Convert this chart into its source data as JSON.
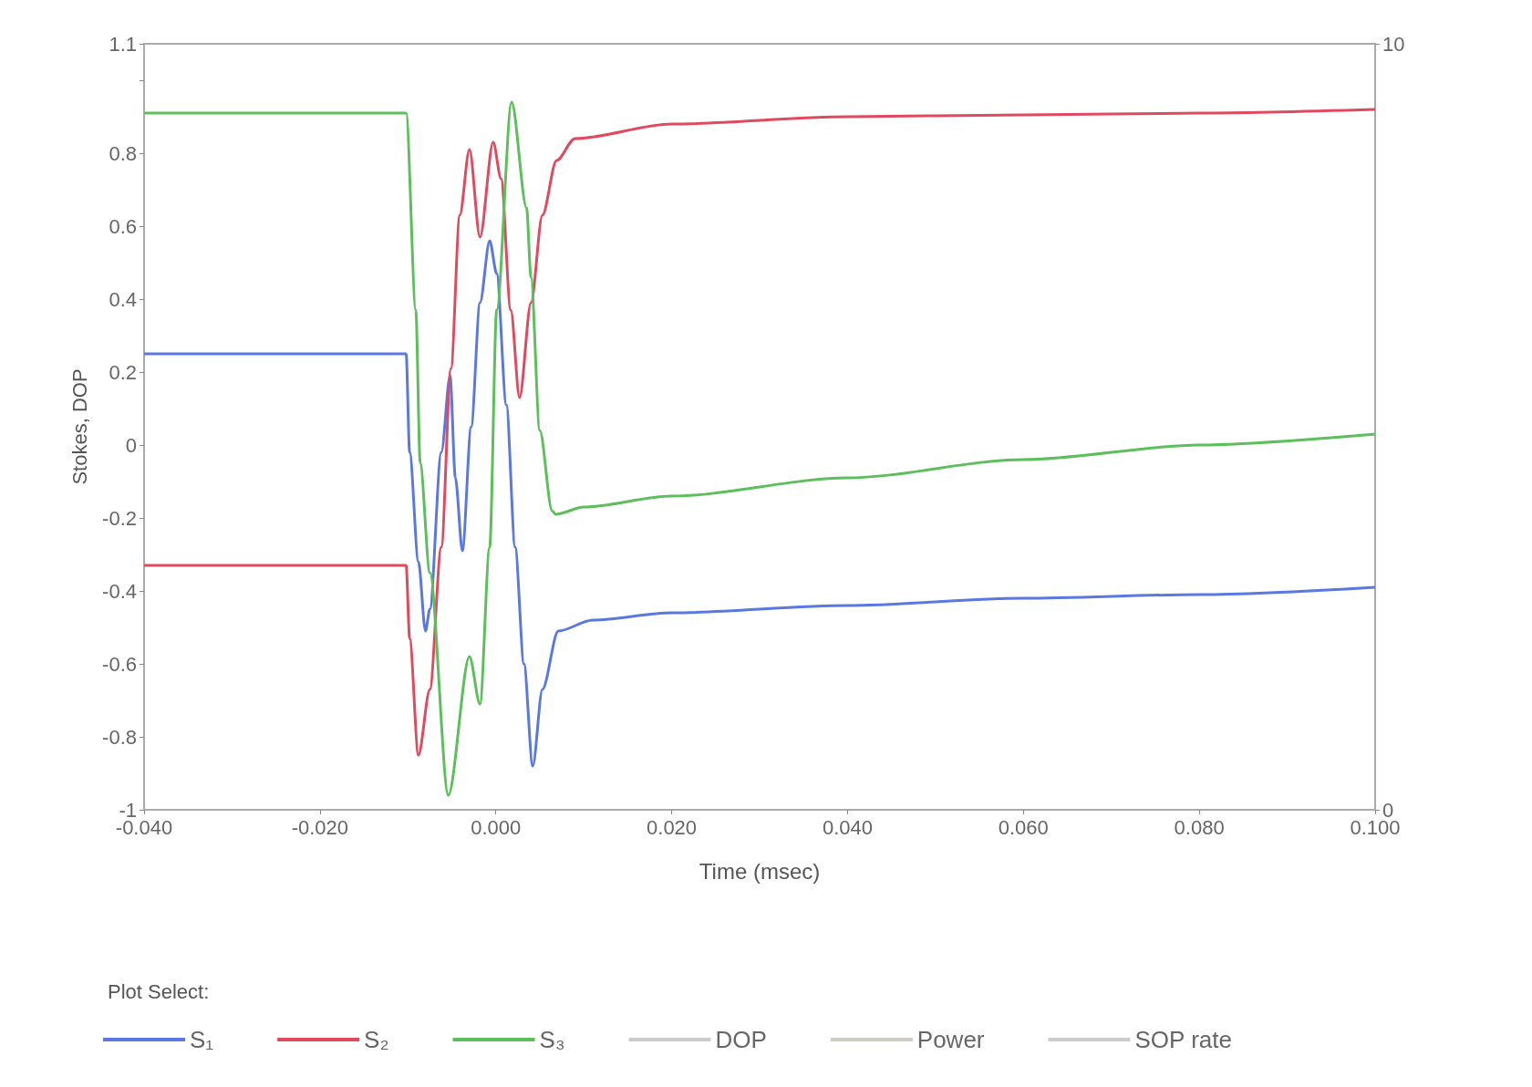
{
  "chart_data": {
    "type": "line",
    "xlabel": "Time (msec)",
    "ylabel": "Stokes, DOP",
    "legend_title": "Plot Select:",
    "legend": "bottom",
    "grid": false,
    "xlim": [
      -0.04,
      0.1
    ],
    "xticks": [
      {
        "value": -0.04,
        "label": "-0.040"
      },
      {
        "value": -0.02,
        "label": "-0.020"
      },
      {
        "value": 0,
        "label": "0.000"
      },
      {
        "value": 0.02,
        "label": "0.020"
      },
      {
        "value": 0.04,
        "label": "0.040"
      },
      {
        "value": 0.06,
        "label": "0.060"
      },
      {
        "value": 0.08,
        "label": "0.080"
      },
      {
        "value": 0.1,
        "label": "0.100"
      }
    ],
    "ylim": [
      -1,
      1.1
    ],
    "yticks": [
      -1,
      -0.8,
      -0.6,
      -0.4,
      -0.2,
      0,
      0.2,
      0.4,
      0.6,
      0.8,
      {
        "value": 1,
        "label": null
      },
      1.1
    ],
    "y2lim": [
      0,
      10
    ],
    "y2ticks": [
      0,
      10
    ],
    "series": [
      {
        "name": "S₁",
        "color": "#5a78e0",
        "x": [
          -0.04,
          -0.0102,
          -0.0098,
          -0.0088,
          -0.008,
          -0.0075,
          -0.0062,
          -0.0052,
          -0.0046,
          -0.0038,
          -0.0028,
          -0.0018,
          -0.0007,
          0.0001,
          0.0012,
          0.0022,
          0.0032,
          0.0042,
          0.0053,
          0.0071,
          0.011,
          0.02,
          0.04,
          0.06,
          0.08,
          0.1
        ],
        "values": [
          0.25,
          0.25,
          -0.02,
          -0.32,
          -0.51,
          -0.45,
          -0.02,
          0.19,
          -0.09,
          -0.29,
          0.05,
          0.39,
          0.56,
          0.47,
          0.11,
          -0.28,
          -0.6,
          -0.88,
          -0.67,
          -0.51,
          -0.48,
          -0.46,
          -0.44,
          -0.42,
          -0.41,
          -0.39
        ]
      },
      {
        "name": "S₂",
        "color": "#e04a60",
        "x": [
          -0.04,
          -0.0102,
          -0.0098,
          -0.0088,
          -0.0075,
          -0.0062,
          -0.0051,
          -0.0041,
          -0.003,
          -0.0018,
          -0.0003,
          0.0006,
          0.0017,
          0.0027,
          0.004,
          0.0053,
          0.0069,
          0.009,
          0.02,
          0.04,
          0.06,
          0.08,
          0.1
        ],
        "values": [
          -0.33,
          -0.33,
          -0.53,
          -0.85,
          -0.67,
          -0.28,
          0.21,
          0.63,
          0.81,
          0.57,
          0.83,
          0.73,
          0.37,
          0.13,
          0.39,
          0.63,
          0.78,
          0.84,
          0.88,
          0.9,
          0.905,
          0.91,
          0.92
        ]
      },
      {
        "name": "S₃",
        "color": "#5cbf5c",
        "x": [
          -0.04,
          -0.0102,
          -0.0091,
          -0.0086,
          -0.0075,
          -0.0054,
          -0.003,
          -0.0018,
          -0.0007,
          0.0001,
          0.0018,
          0.0035,
          0.004,
          0.005,
          0.0064,
          0.0068,
          0.01,
          0.02,
          0.04,
          0.06,
          0.08,
          0.1
        ],
        "values": [
          0.91,
          0.91,
          0.37,
          -0.05,
          -0.35,
          -0.96,
          -0.58,
          -0.71,
          -0.28,
          0.37,
          0.94,
          0.65,
          0.46,
          0.04,
          -0.18,
          -0.19,
          -0.17,
          -0.14,
          -0.09,
          -0.04,
          0,
          0.03
        ]
      },
      {
        "name": "DOP",
        "color": "#c8ccd0"
      },
      {
        "name": "Power",
        "color": "#d0ccc4"
      },
      {
        "name": "SOP rate",
        "color": "#ccccd0"
      }
    ]
  }
}
